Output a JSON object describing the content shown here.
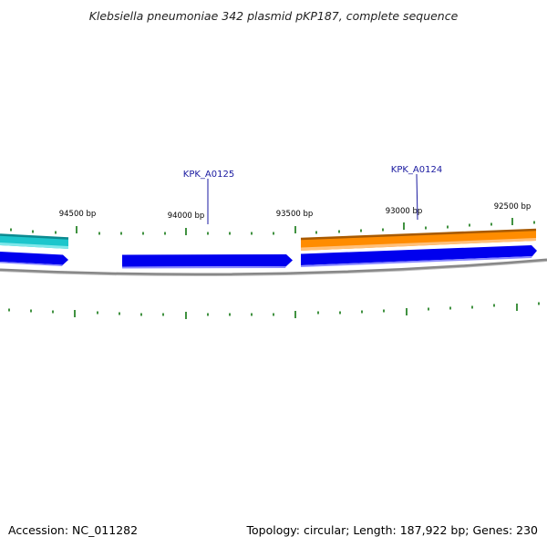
{
  "title": "Klebsiella pneumoniae 342 plasmid pKP187, complete sequence",
  "accession": "Accession: NC_011282",
  "summary": "Topology: circular; Length: 187,922 bp; Genes: 230",
  "colors": {
    "backbone": "#888888",
    "tick": "#117711",
    "label_line": "#1a1aa0",
    "label_text": "#1a1aa0",
    "cds": "#0000ee",
    "orange_feature": "#ff8c00",
    "orange_edge": "#a85a00",
    "cyan_feature": "#1cc6cc",
    "cyan_edge": "#0c8a90"
  },
  "scale": {
    "ticks": [
      {
        "label": "94500 bp"
      },
      {
        "label": "94000 bp"
      },
      {
        "label": "93500 bp"
      },
      {
        "label": "93000 bp"
      },
      {
        "label": "92500 bp"
      }
    ]
  },
  "genes": [
    {
      "label": "KPK_A0125"
    },
    {
      "label": "KPK_A0124"
    }
  ]
}
